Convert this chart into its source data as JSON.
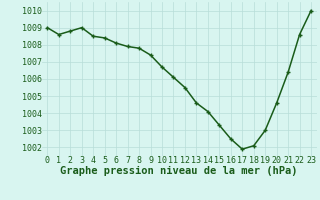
{
  "x": [
    0,
    1,
    2,
    3,
    4,
    5,
    6,
    7,
    8,
    9,
    10,
    11,
    12,
    13,
    14,
    15,
    16,
    17,
    18,
    19,
    20,
    21,
    22,
    23
  ],
  "y": [
    1009.0,
    1008.6,
    1008.8,
    1009.0,
    1008.5,
    1008.4,
    1008.1,
    1007.9,
    1007.8,
    1007.4,
    1006.7,
    1006.1,
    1005.5,
    1004.6,
    1004.1,
    1003.3,
    1002.5,
    1001.9,
    1002.1,
    1003.0,
    1004.6,
    1006.4,
    1008.6,
    1010.0
  ],
  "line_color": "#1a5c1a",
  "marker": "+",
  "bg_color": "#d8f5f0",
  "grid_color": "#b8ddd8",
  "xlabel": "Graphe pression niveau de la mer (hPa)",
  "xlabel_color": "#1a5c1a",
  "xlabel_fontsize": 7.5,
  "tick_color": "#1a5c1a",
  "tick_fontsize": 6.0,
  "ylim": [
    1001.5,
    1010.5
  ],
  "yticks": [
    1002,
    1003,
    1004,
    1005,
    1006,
    1007,
    1008,
    1009,
    1010
  ],
  "xticks": [
    0,
    1,
    2,
    3,
    4,
    5,
    6,
    7,
    8,
    9,
    10,
    11,
    12,
    13,
    14,
    15,
    16,
    17,
    18,
    19,
    20,
    21,
    22,
    23
  ],
  "xlim": [
    -0.5,
    23.5
  ],
  "line_width": 1.1,
  "marker_size": 3.5,
  "marker_edge_width": 1.0
}
